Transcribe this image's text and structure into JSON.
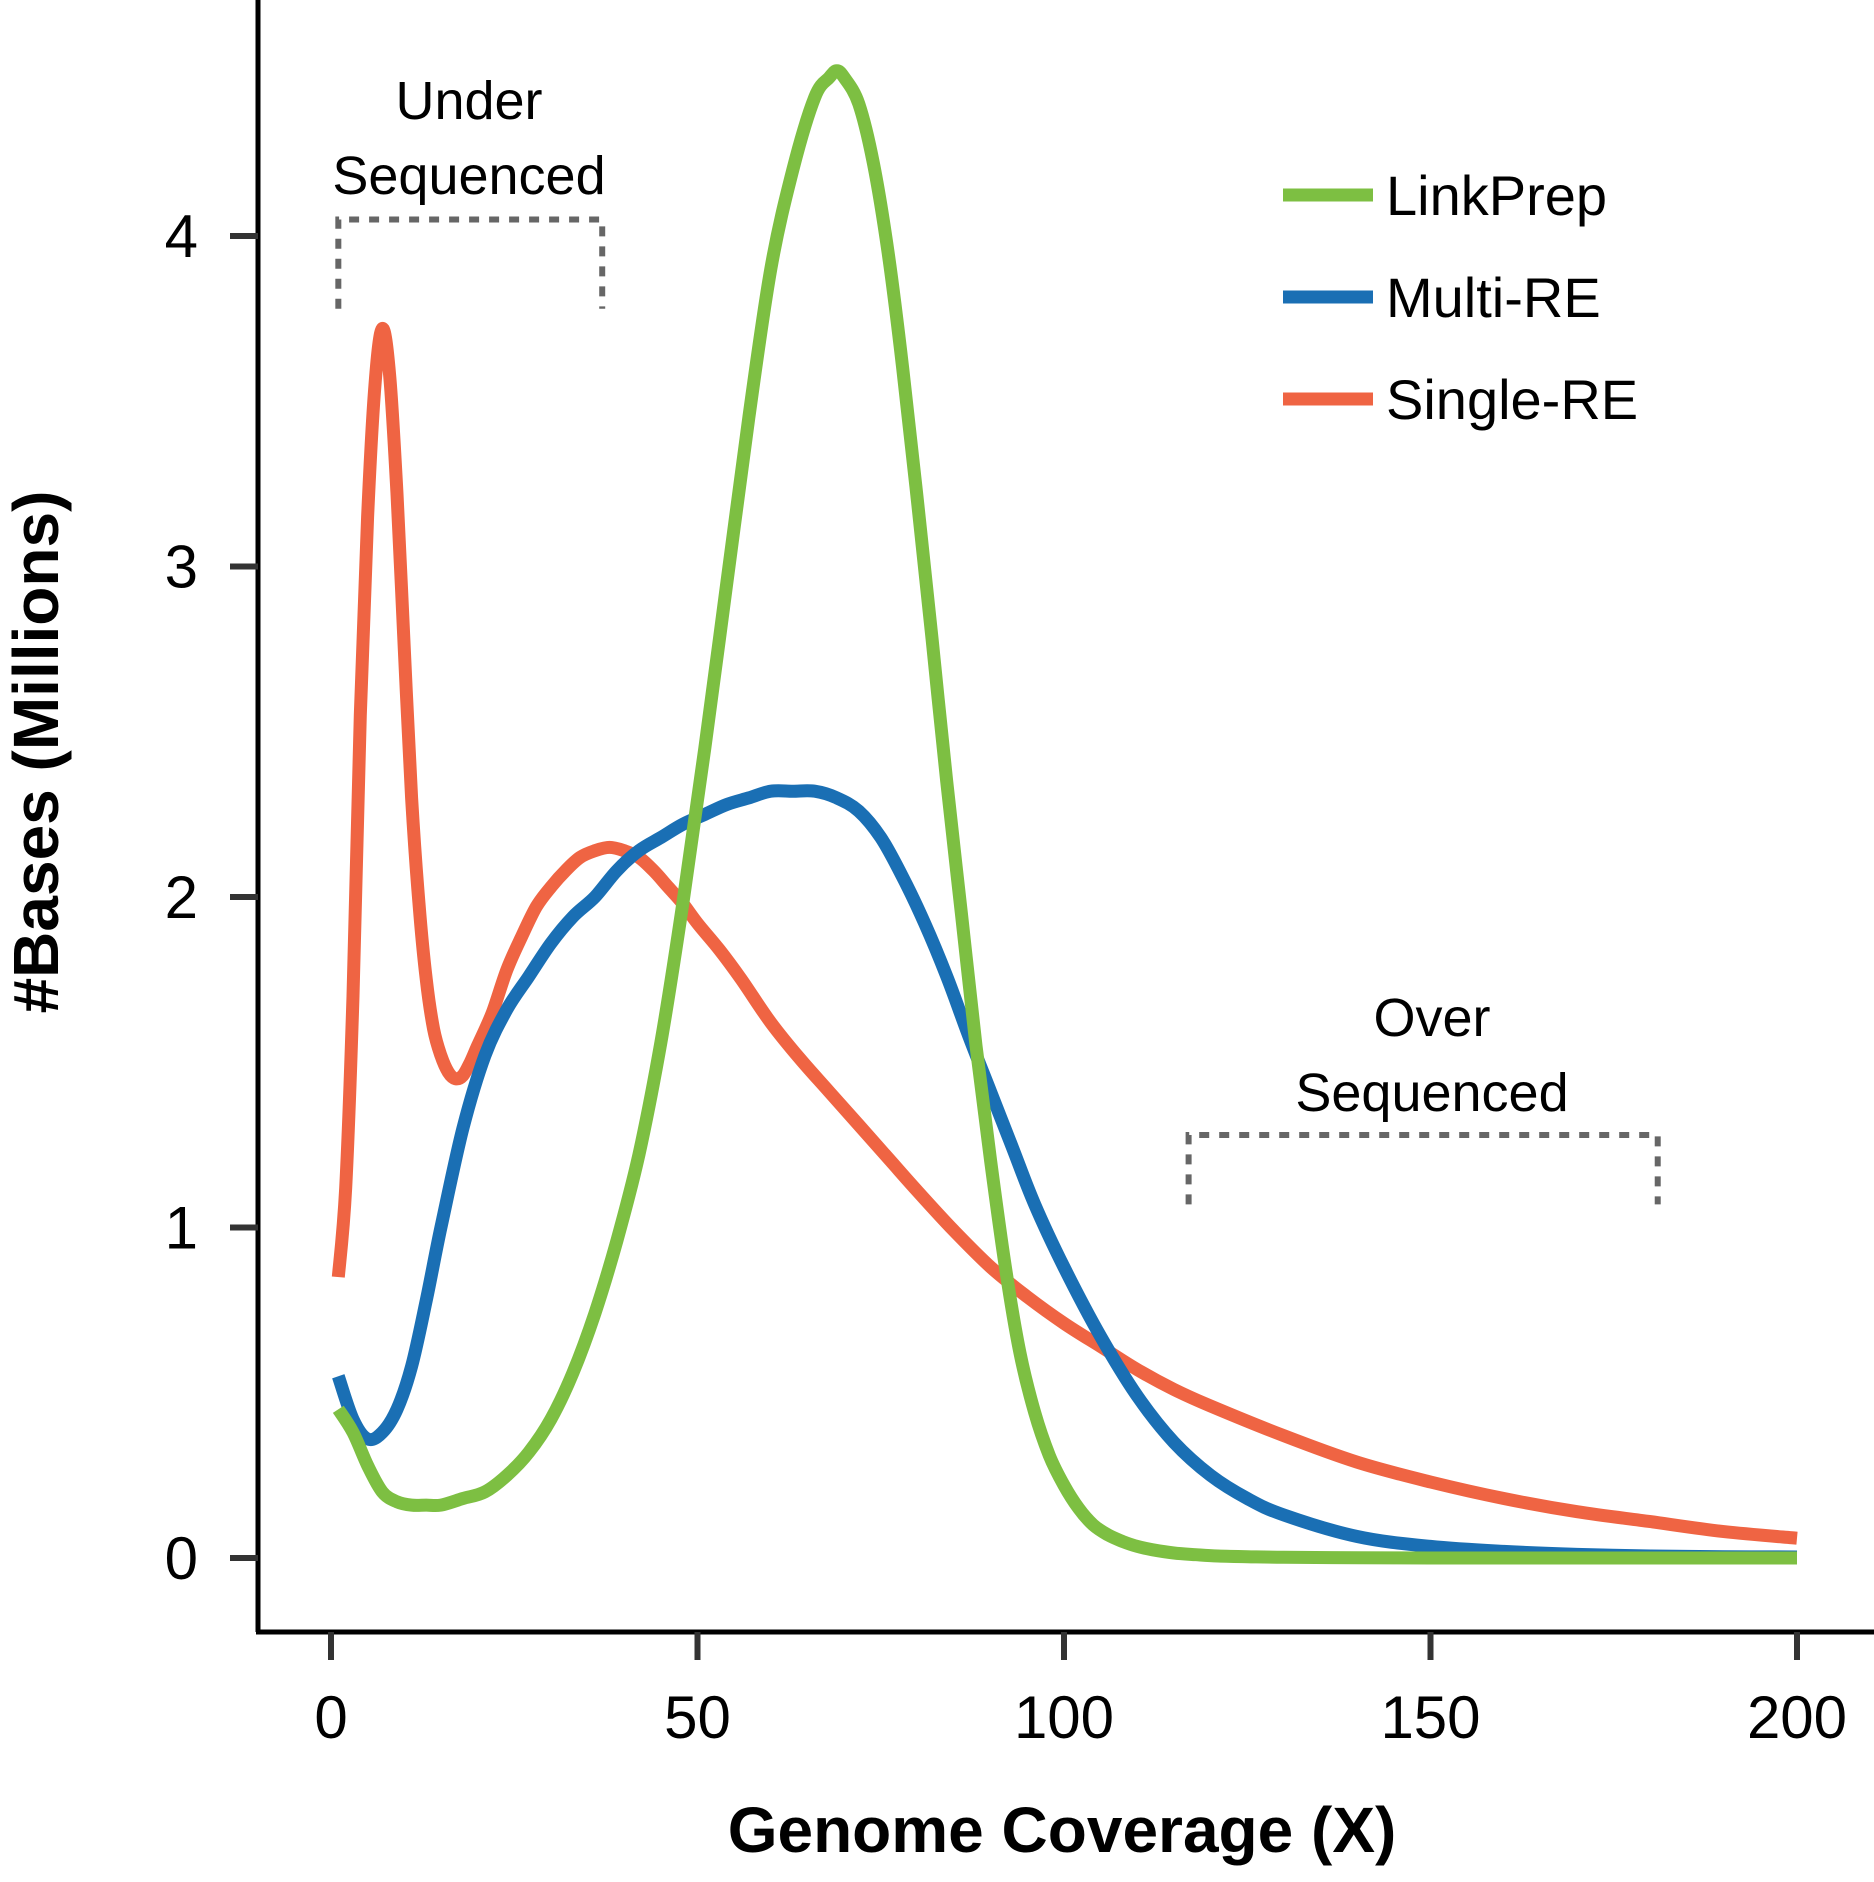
{
  "chart_data": {
    "type": "line",
    "title": "",
    "xlabel": "Genome Coverage (X)",
    "ylabel": "#Bases (Millions)",
    "xlim": [
      -10,
      210
    ],
    "ylim": [
      -0.2,
      4.8
    ],
    "xticks": [
      0,
      50,
      100,
      150,
      200
    ],
    "yticks": [
      0,
      1,
      2,
      3,
      4
    ],
    "grid": false,
    "legend_position": "top-right",
    "series": [
      {
        "name": "LinkPrep",
        "color": "#7dbf42",
        "x": [
          1,
          3,
          5,
          7,
          9,
          11,
          13,
          15,
          18,
          21,
          24,
          27,
          30,
          33,
          36,
          39,
          42,
          45,
          48,
          51,
          54,
          57,
          60,
          63,
          66,
          68,
          69,
          70,
          72,
          74,
          76,
          78,
          80,
          82,
          84,
          86,
          88,
          90,
          92,
          94,
          96,
          98,
          100,
          102,
          104,
          106,
          108,
          110,
          112,
          115,
          118,
          121,
          125,
          130,
          140,
          150,
          160,
          180,
          200
        ],
        "y": [
          0.45,
          0.38,
          0.28,
          0.2,
          0.17,
          0.16,
          0.16,
          0.16,
          0.18,
          0.2,
          0.25,
          0.32,
          0.42,
          0.56,
          0.74,
          0.96,
          1.22,
          1.56,
          1.98,
          2.45,
          2.95,
          3.45,
          3.9,
          4.2,
          4.42,
          4.48,
          4.5,
          4.48,
          4.4,
          4.22,
          3.95,
          3.6,
          3.2,
          2.78,
          2.35,
          1.95,
          1.55,
          1.2,
          0.88,
          0.62,
          0.44,
          0.31,
          0.22,
          0.15,
          0.1,
          0.07,
          0.05,
          0.035,
          0.025,
          0.015,
          0.01,
          0.006,
          0.004,
          0.002,
          0.001,
          0.0,
          0.0,
          0.0,
          0.0
        ]
      },
      {
        "name": "Multi-RE",
        "color": "#1a6fb4",
        "x": [
          1,
          3,
          5,
          7,
          9,
          11,
          13,
          15,
          18,
          21,
          24,
          27,
          30,
          33,
          36,
          39,
          42,
          45,
          48,
          51,
          54,
          57,
          60,
          63,
          66,
          69,
          72,
          75,
          78,
          81,
          84,
          87,
          90,
          93,
          96,
          100,
          105,
          110,
          115,
          120,
          125,
          130,
          140,
          150,
          160,
          170,
          180,
          190,
          200
        ],
        "y": [
          0.55,
          0.42,
          0.36,
          0.38,
          0.45,
          0.58,
          0.78,
          1.0,
          1.3,
          1.52,
          1.66,
          1.76,
          1.86,
          1.94,
          2.0,
          2.08,
          2.14,
          2.18,
          2.22,
          2.25,
          2.28,
          2.3,
          2.32,
          2.32,
          2.32,
          2.3,
          2.26,
          2.18,
          2.06,
          1.92,
          1.76,
          1.58,
          1.41,
          1.24,
          1.07,
          0.88,
          0.67,
          0.49,
          0.35,
          0.25,
          0.18,
          0.13,
          0.065,
          0.035,
          0.02,
          0.011,
          0.006,
          0.004,
          0.003
        ]
      },
      {
        "name": "Single-RE",
        "color": "#ef6443",
        "x": [
          1,
          2,
          3,
          4,
          5,
          6,
          7,
          8,
          9,
          10,
          11,
          12,
          13,
          14,
          15,
          16,
          17,
          18,
          19,
          20,
          22,
          24,
          26,
          28,
          30,
          32,
          34,
          36,
          38,
          40,
          42,
          44,
          46,
          48,
          50,
          53,
          56,
          60,
          64,
          68,
          72,
          76,
          80,
          85,
          90,
          95,
          100,
          105,
          110,
          115,
          120,
          130,
          140,
          150,
          160,
          170,
          180,
          190,
          200
        ],
        "y": [
          0.85,
          1.12,
          1.7,
          2.55,
          3.15,
          3.55,
          3.72,
          3.58,
          3.22,
          2.75,
          2.3,
          1.98,
          1.75,
          1.6,
          1.52,
          1.47,
          1.45,
          1.46,
          1.5,
          1.55,
          1.65,
          1.78,
          1.88,
          1.97,
          2.03,
          2.08,
          2.12,
          2.14,
          2.15,
          2.14,
          2.12,
          2.08,
          2.03,
          1.98,
          1.92,
          1.84,
          1.75,
          1.62,
          1.51,
          1.41,
          1.31,
          1.21,
          1.11,
          0.99,
          0.88,
          0.79,
          0.71,
          0.64,
          0.57,
          0.51,
          0.46,
          0.37,
          0.29,
          0.23,
          0.18,
          0.14,
          0.11,
          0.08,
          0.06
        ]
      }
    ],
    "annotations": [
      {
        "lines": [
          "Under",
          "Sequenced"
        ],
        "bracket_x": [
          1,
          37
        ],
        "bracket_y": [
          3.78,
          4.05
        ]
      },
      {
        "lines": [
          "Over",
          "Sequenced"
        ],
        "bracket_x": [
          117,
          181
        ],
        "bracket_y": [
          1.07,
          1.28
        ]
      }
    ]
  }
}
